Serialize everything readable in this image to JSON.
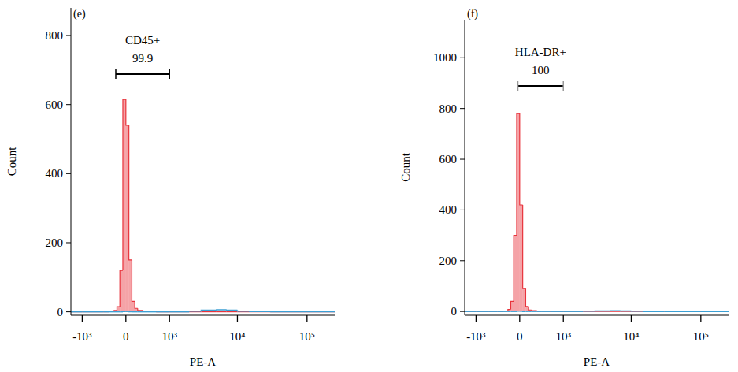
{
  "chart_data": [
    {
      "type": "histogram",
      "title": "(e)",
      "x_label": "PE-A",
      "y_label": "Count",
      "bins": [
        -1500,
        -1000,
        -600,
        -400,
        -300,
        -200,
        -150,
        -100,
        -50,
        0,
        50,
        100,
        150,
        200,
        300,
        400,
        600,
        1000,
        2000,
        3000,
        5000,
        7000,
        10000,
        15000,
        30000,
        100000,
        250000
      ],
      "series": [
        {
          "color": "#e8333c",
          "values": [
            0,
            0,
            0,
            0,
            1,
            4,
            15,
            120,
            615,
            540,
            150,
            30,
            10,
            4,
            1,
            1,
            0,
            0,
            0,
            0,
            0,
            0,
            0,
            0,
            0,
            0
          ]
        },
        {
          "color": "#3b9fd4",
          "values": [
            0,
            0,
            0,
            0,
            0,
            0,
            0,
            0,
            1,
            1,
            0,
            0,
            0,
            0,
            0,
            0,
            0,
            0,
            2,
            5,
            6,
            5,
            2,
            1,
            0,
            0
          ]
        }
      ],
      "xlim": [
        -1500,
        250000
      ],
      "xticks": [
        {
          "value": -1000,
          "label": "-10³"
        },
        0,
        {
          "value": 1000,
          "label": "10³"
        },
        {
          "value": 10000,
          "label": "10⁴"
        },
        {
          "value": 100000,
          "label": "10⁵"
        }
      ],
      "ylim": [
        -10,
        880
      ],
      "yticks": [
        0,
        200,
        400,
        600,
        800
      ],
      "gate": {
        "label": "CD45+",
        "value": 99.9,
        "range": [
          -170,
          1000
        ]
      }
    },
    {
      "type": "histogram",
      "title": "(f)",
      "x_label": "PE-A",
      "y_label": "Count",
      "bins": [
        -1500,
        -1000,
        -600,
        -400,
        -300,
        -200,
        -150,
        -100,
        -50,
        0,
        50,
        100,
        150,
        200,
        300,
        400,
        600,
        1000,
        2000,
        3000,
        5000,
        7000,
        10000,
        15000,
        30000,
        100000,
        250000
      ],
      "series": [
        {
          "color": "#e8333c",
          "values": [
            0,
            0,
            0,
            0,
            2,
            8,
            40,
            300,
            780,
            420,
            90,
            20,
            6,
            3,
            1,
            1,
            0,
            0,
            0,
            0,
            0,
            0,
            0,
            0,
            0,
            0
          ]
        },
        {
          "color": "#3b9fd4",
          "values": [
            0,
            0,
            0,
            0,
            0,
            0,
            0,
            0,
            1,
            1,
            0,
            0,
            0,
            0,
            0,
            0,
            0,
            0,
            1,
            2,
            3,
            2,
            1,
            0,
            0,
            0
          ]
        }
      ],
      "xlim": [
        -1500,
        250000
      ],
      "xticks": [
        {
          "value": -1000,
          "label": "-10³"
        },
        0,
        {
          "value": 1000,
          "label": "10³"
        },
        {
          "value": 10000,
          "label": "10⁴"
        },
        {
          "value": 100000,
          "label": "10⁵"
        }
      ],
      "ylim": [
        -15,
        1150
      ],
      "yticks": [
        0,
        200,
        400,
        600,
        800,
        1000
      ],
      "gate": {
        "label": "HLA-DR+",
        "value": 100,
        "range": [
          -30,
          1000
        ]
      }
    }
  ]
}
